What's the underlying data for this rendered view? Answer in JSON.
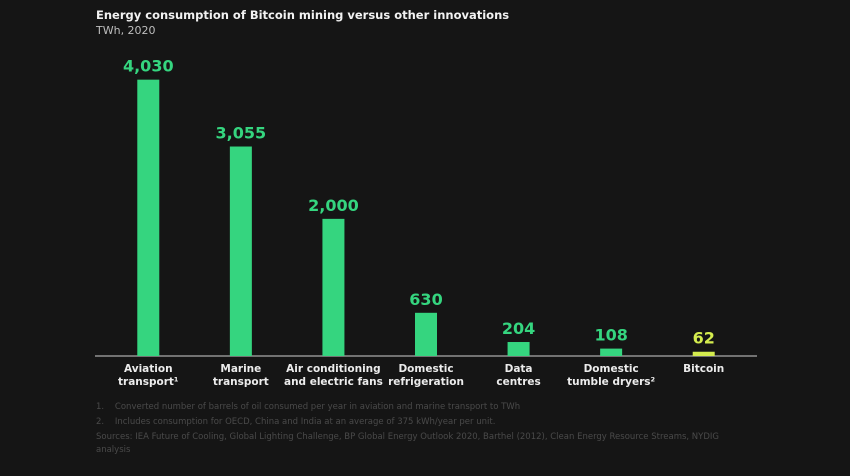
{
  "chart_data": {
    "type": "bar",
    "title": "Energy consumption of Bitcoin mining versus other innovations",
    "subtitle": "TWh, 2020",
    "categories": [
      "Aviation\ntransport¹",
      "Marine\ntransport",
      "Air conditioning\nand electric fans",
      "Domestic\nrefrigeration",
      "Data\ncentres",
      "Domestic\ntumble dryers²",
      "Bitcoin"
    ],
    "values": [
      4030,
      3055,
      2000,
      630,
      204,
      108,
      62
    ],
    "value_labels": [
      "4,030",
      "3,055",
      "2,000",
      "630",
      "204",
      "108",
      "62"
    ],
    "colors": [
      "#35d57f",
      "#35d57f",
      "#35d57f",
      "#35d57f",
      "#35d57f",
      "#35d57f",
      "#d4ec4e"
    ],
    "ylim": [
      0,
      4200
    ],
    "footnotes": [
      "1.    Converted number of barrels of oil consumed per year in aviation and marine transport to TWh",
      "2.    Includes consumption for OECD, China and India at an average of 375 kWh/year per unit.",
      "Sources: IEA Future of Cooling, Global Lighting Challenge, BP Global Energy Outlook 2020, Barthel (2012), Clean Energy Resource Streams, NYDIG analysis"
    ]
  }
}
